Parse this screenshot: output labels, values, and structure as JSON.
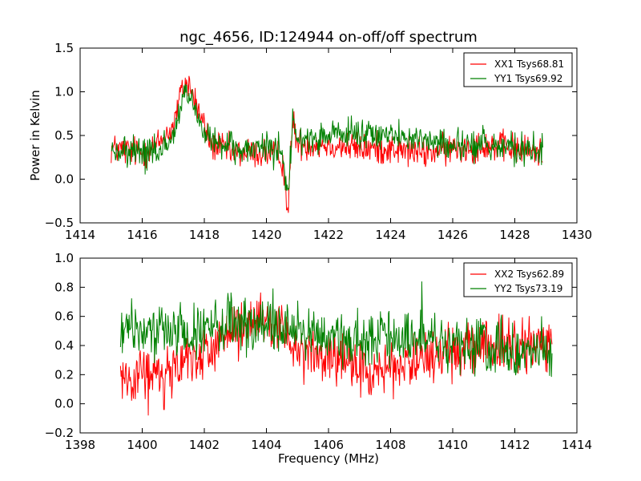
{
  "chart_data": [
    {
      "type": "line",
      "title": "ngc_4656, ID:124944 on-off/off spectrum",
      "xlabel": "",
      "ylabel": "Power in Kelvin",
      "xlim": [
        1414,
        1430
      ],
      "ylim": [
        -0.5,
        1.5
      ],
      "xticks": [
        "1414",
        "1416",
        "1418",
        "1420",
        "1422",
        "1424",
        "1426",
        "1428",
        "1430"
      ],
      "yticks": [
        "−0.5",
        "0.0",
        "0.5",
        "1.0",
        "1.5"
      ],
      "grid": false,
      "legend_position": "top-right",
      "x_range": [
        1415.0,
        1428.9
      ],
      "series": [
        {
          "name": "XX1 Tsys68.81",
          "color": "#ff0000",
          "x": [
            1415.0,
            1416.0,
            1416.5,
            1417.0,
            1417.3,
            1417.5,
            1417.8,
            1418.2,
            1419.0,
            1420.0,
            1420.5,
            1420.7,
            1420.85,
            1421.0,
            1422.0,
            1423.0,
            1424.0,
            1425.0,
            1426.0,
            1427.0,
            1428.0,
            1428.9
          ],
          "values": [
            0.35,
            0.3,
            0.4,
            0.6,
            1.05,
            1.1,
            0.8,
            0.4,
            0.3,
            0.3,
            0.25,
            -0.35,
            0.7,
            0.4,
            0.4,
            0.35,
            0.35,
            0.3,
            0.35,
            0.4,
            0.35,
            0.3
          ]
        },
        {
          "name": "YY1 Tsys69.92",
          "color": "#008000",
          "x": [
            1415.0,
            1416.0,
            1416.5,
            1417.0,
            1417.3,
            1417.5,
            1417.8,
            1418.2,
            1419.0,
            1420.0,
            1420.5,
            1420.7,
            1420.85,
            1421.0,
            1422.0,
            1423.0,
            1424.0,
            1425.0,
            1426.0,
            1427.0,
            1428.0,
            1428.9
          ],
          "values": [
            0.3,
            0.3,
            0.3,
            0.5,
            0.9,
            0.95,
            0.7,
            0.4,
            0.35,
            0.35,
            0.35,
            -0.2,
            0.65,
            0.45,
            0.5,
            0.5,
            0.5,
            0.45,
            0.4,
            0.4,
            0.35,
            0.3
          ]
        }
      ]
    },
    {
      "type": "line",
      "title": "",
      "xlabel": "Frequency (MHz)",
      "ylabel": "",
      "xlim": [
        1398,
        1414
      ],
      "ylim": [
        -0.2,
        1.0
      ],
      "xticks": [
        "1398",
        "1400",
        "1402",
        "1404",
        "1406",
        "1408",
        "1410",
        "1412",
        "1414"
      ],
      "yticks": [
        "−0.2",
        "0.0",
        "0.2",
        "0.4",
        "0.6",
        "0.8",
        "1.0"
      ],
      "grid": false,
      "legend_position": "top-right",
      "x_range": [
        1399.3,
        1413.2
      ],
      "series": [
        {
          "name": "XX2 Tsys62.89",
          "color": "#ff0000",
          "x": [
            1399.3,
            1400.0,
            1401.0,
            1402.0,
            1403.0,
            1404.0,
            1404.5,
            1405.0,
            1406.0,
            1407.0,
            1407.5,
            1408.0,
            1409.0,
            1410.0,
            1411.0,
            1412.0,
            1413.2
          ],
          "values": [
            0.2,
            0.2,
            0.25,
            0.35,
            0.5,
            0.55,
            0.5,
            0.4,
            0.3,
            0.25,
            0.2,
            0.25,
            0.3,
            0.35,
            0.4,
            0.4,
            0.4
          ],
          "dips": [
            [
              1400.2,
              -0.08
            ],
            [
              1400.7,
              -0.04
            ]
          ]
        },
        {
          "name": "YY2 Tsys73.19",
          "color": "#008000",
          "x": [
            1399.3,
            1400.0,
            1401.0,
            1402.0,
            1403.0,
            1404.0,
            1405.0,
            1406.0,
            1407.0,
            1408.0,
            1409.0,
            1410.0,
            1411.0,
            1412.0,
            1413.2
          ],
          "values": [
            0.5,
            0.5,
            0.5,
            0.5,
            0.55,
            0.55,
            0.5,
            0.45,
            0.45,
            0.45,
            0.45,
            0.4,
            0.4,
            0.35,
            0.35
          ],
          "spikes": [
            [
              1409.0,
              0.84
            ]
          ]
        }
      ]
    }
  ]
}
